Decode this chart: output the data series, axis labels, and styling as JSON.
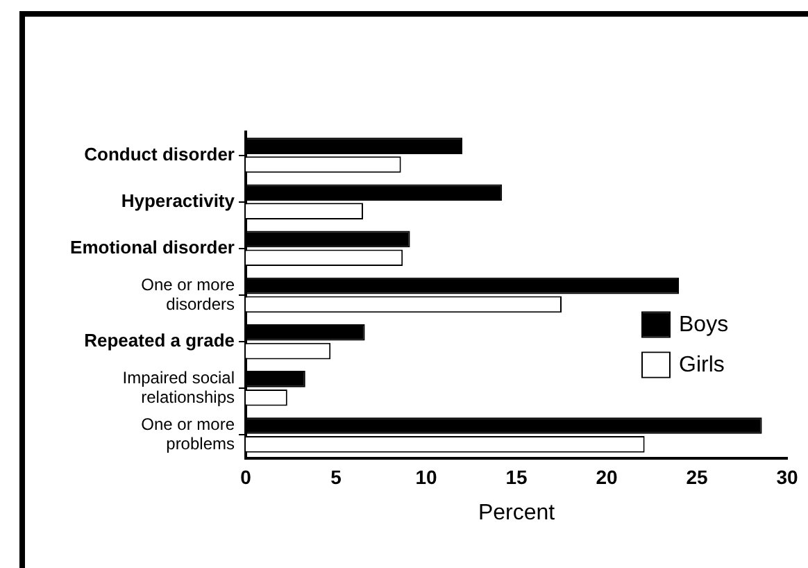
{
  "chart_data": {
    "type": "bar",
    "orientation": "horizontal",
    "xlabel": "Percent",
    "categories": [
      "Conduct disorder",
      "Hyperactivity",
      "Emotional disorder",
      "One or more disorders",
      "Repeated a grade",
      "Impaired social relationships",
      "One or more problems"
    ],
    "series": [
      {
        "name": "Boys",
        "color": "#000000",
        "values": [
          12.0,
          14.2,
          9.1,
          24.0,
          6.6,
          3.3,
          28.6
        ]
      },
      {
        "name": "Girls",
        "color": "#ffffff",
        "values": [
          8.6,
          6.5,
          8.7,
          17.5,
          4.7,
          2.3,
          22.1
        ]
      }
    ],
    "xlim": [
      0,
      30
    ],
    "xticks": [
      0,
      5,
      10,
      15,
      20,
      25,
      30
    ],
    "grid": false,
    "legend": "right"
  }
}
